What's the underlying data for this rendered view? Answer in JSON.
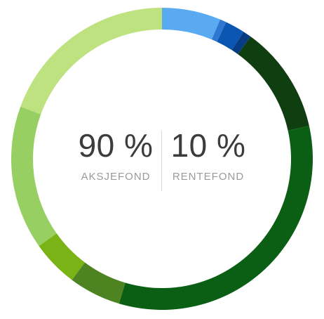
{
  "chart_data": {
    "type": "pie",
    "style": "donut",
    "summary": [
      {
        "value": "90 %",
        "label": "AKSJEFOND"
      },
      {
        "value": "10 %",
        "label": "RENTEFOND"
      }
    ],
    "segments": [
      {
        "value": 6.3,
        "color": "#5aaaf2"
      },
      {
        "value": 0.7,
        "color": "#2f78d2"
      },
      {
        "value": 2.1,
        "color": "#0b56b0"
      },
      {
        "value": 0.9,
        "color": "#083c82"
      },
      {
        "value": 11.5,
        "color": "#0f3f10"
      },
      {
        "value": 33.1,
        "color": "#0b5f14"
      },
      {
        "value": 5.6,
        "color": "#4d8421"
      },
      {
        "value": 5.0,
        "color": "#79b315"
      },
      {
        "value": 15.4,
        "color": "#97cf62"
      },
      {
        "value": 19.4,
        "color": "#bde27f"
      }
    ]
  }
}
